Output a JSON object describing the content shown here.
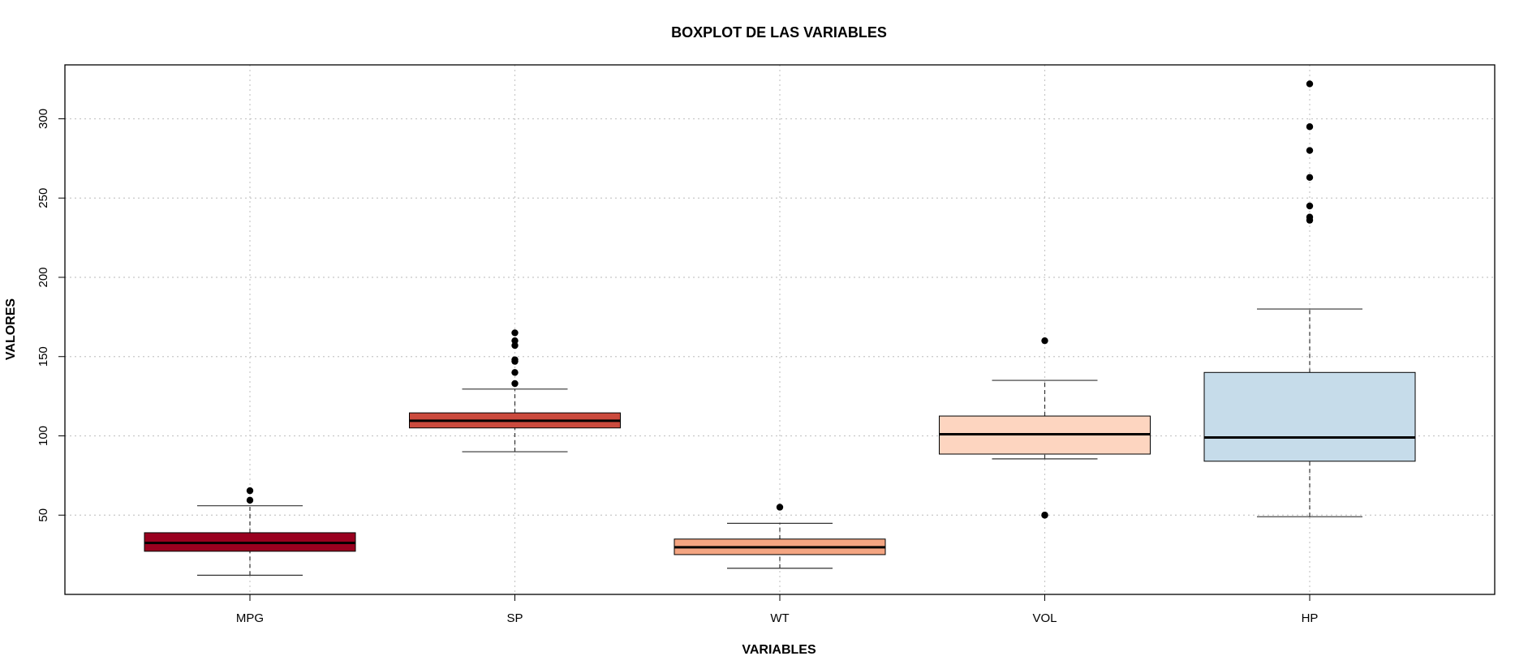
{
  "chart_data": {
    "type": "boxplot",
    "title": "BOXPLOT DE LAS VARIABLES",
    "xlabel": "VARIABLES",
    "ylabel": "VALORES",
    "ylim": [
      0,
      334
    ],
    "yticks": [
      50,
      100,
      150,
      200,
      250,
      300
    ],
    "grid": true,
    "categories": [
      "MPG",
      "SP",
      "WT",
      "VOL",
      "HP"
    ],
    "boxes": [
      {
        "name": "MPG",
        "color": "#99001F",
        "whisker_low": 12.1,
        "q1": 27.2,
        "median": 32.5,
        "q3": 38.9,
        "whisker_high": 55.9,
        "outliers": [
          59.4,
          65.4
        ]
      },
      {
        "name": "SP",
        "color": "#CB4A3D",
        "whisker_low": 90,
        "q1": 105,
        "median": 109.5,
        "q3": 114.5,
        "whisker_high": 129.5,
        "outliers": [
          133,
          140,
          147,
          148,
          157,
          160,
          165
        ]
      },
      {
        "name": "WT",
        "color": "#F4A582",
        "whisker_low": 16.5,
        "q1": 25.1,
        "median": 29.7,
        "q3": 34.9,
        "whisker_high": 44.8,
        "outliers": [
          55
        ]
      },
      {
        "name": "VOL",
        "color": "#FDD5C0",
        "whisker_low": 85.5,
        "q1": 88.5,
        "median": 101,
        "q3": 112.5,
        "whisker_high": 135,
        "outliers": [
          50,
          50,
          160
        ]
      },
      {
        "name": "HP",
        "color": "#C6DCEA",
        "whisker_low": 49,
        "q1": 84,
        "median": 99,
        "q3": 140,
        "whisker_high": 180,
        "outliers": [
          236,
          238,
          245,
          263,
          280,
          295,
          322
        ]
      }
    ]
  }
}
